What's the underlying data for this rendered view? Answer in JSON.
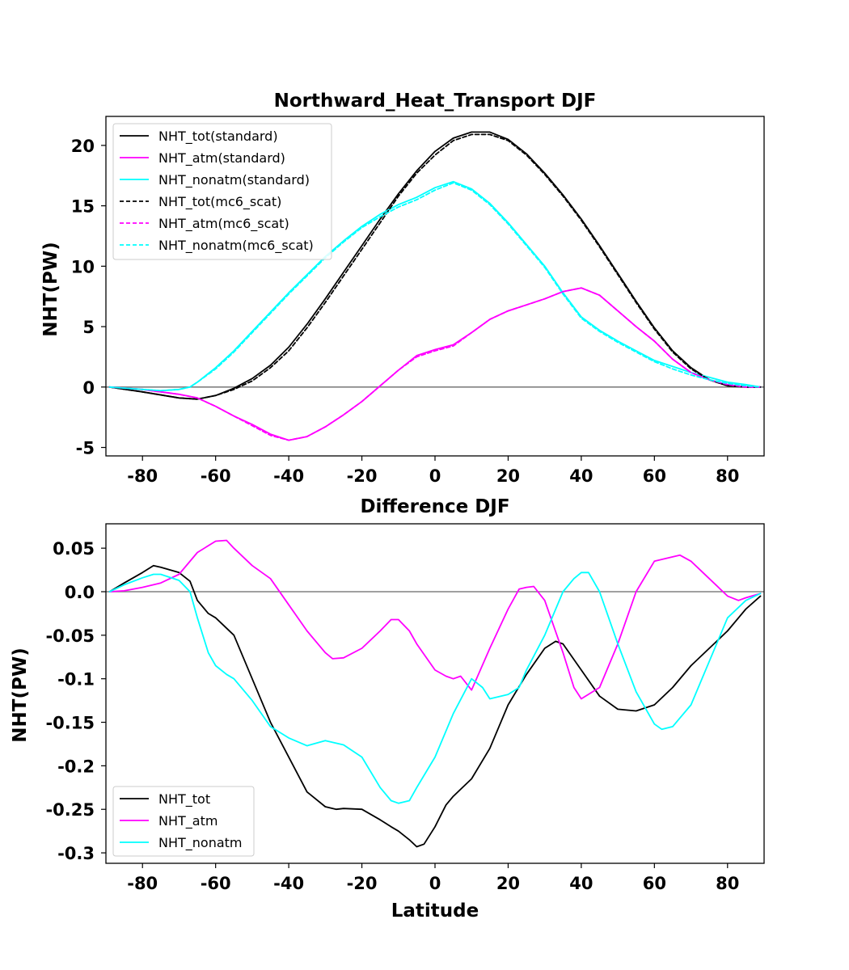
{
  "chart_data": [
    {
      "type": "line",
      "title": "Northward_Heat_Transport DJF",
      "xlabel": "",
      "ylabel": "NHT(PW)",
      "xlim": [
        -90,
        90
      ],
      "ylim": [
        -5.7,
        22.4
      ],
      "xticks": [
        "-80",
        "-60",
        "-40",
        "-20",
        "0",
        "20",
        "40",
        "60",
        "80"
      ],
      "yticks": [
        "-5",
        "0",
        "5",
        "10",
        "15",
        "20"
      ],
      "zero_line": true,
      "legend_position": "upper-left",
      "series": [
        {
          "name": "NHT_tot(standard)",
          "color": "#000000",
          "dash": "solid",
          "x": [
            -89,
            -80,
            -70,
            -65,
            -60,
            -55,
            -50,
            -45,
            -40,
            -35,
            -30,
            -25,
            -20,
            -15,
            -10,
            -5,
            0,
            5,
            10,
            15,
            20,
            25,
            30,
            35,
            40,
            45,
            50,
            55,
            60,
            65,
            70,
            75,
            80,
            85,
            89
          ],
          "y": [
            0,
            -0.4,
            -0.9,
            -1.0,
            -0.7,
            -0.1,
            0.7,
            1.8,
            3.3,
            5.2,
            7.3,
            9.5,
            11.7,
            13.9,
            16.0,
            17.9,
            19.5,
            20.6,
            21.1,
            21.1,
            20.5,
            19.3,
            17.7,
            15.9,
            13.9,
            11.7,
            9.4,
            7.1,
            4.9,
            3.0,
            1.6,
            0.6,
            0.1,
            0,
            0
          ]
        },
        {
          "name": "NHT_atm(standard)",
          "color": "#ff00ff",
          "dash": "solid",
          "x": [
            -89,
            -80,
            -75,
            -70,
            -65,
            -60,
            -55,
            -50,
            -45,
            -40,
            -35,
            -30,
            -25,
            -20,
            -15,
            -10,
            -5,
            0,
            5,
            10,
            15,
            20,
            25,
            30,
            35,
            40,
            45,
            50,
            55,
            60,
            65,
            70,
            75,
            80,
            85,
            89
          ],
          "y": [
            0,
            -0.2,
            -0.4,
            -0.6,
            -0.9,
            -1.6,
            -2.4,
            -3.1,
            -3.9,
            -4.4,
            -4.1,
            -3.3,
            -2.3,
            -1.2,
            0.1,
            1.4,
            2.6,
            3.1,
            3.5,
            4.5,
            5.6,
            6.3,
            6.8,
            7.3,
            7.9,
            8.2,
            7.6,
            6.3,
            5.0,
            3.8,
            2.3,
            1.2,
            0.6,
            0.2,
            0,
            0
          ]
        },
        {
          "name": "NHT_nonatm(standard)",
          "color": "#00ffff",
          "dash": "solid",
          "x": [
            -89,
            -80,
            -75,
            -70,
            -67,
            -65,
            -60,
            -55,
            -50,
            -45,
            -40,
            -35,
            -30,
            -25,
            -20,
            -15,
            -10,
            -5,
            0,
            5,
            10,
            15,
            20,
            25,
            30,
            35,
            40,
            45,
            50,
            55,
            60,
            65,
            70,
            75,
            80,
            85,
            89
          ],
          "y": [
            0,
            -0.2,
            -0.3,
            -0.2,
            0,
            0.4,
            1.6,
            3.0,
            4.6,
            6.2,
            7.8,
            9.3,
            10.8,
            12.1,
            13.3,
            14.3,
            15.1,
            15.7,
            16.5,
            17.0,
            16.4,
            15.2,
            13.6,
            11.8,
            10.0,
            7.8,
            5.8,
            4.7,
            3.8,
            3.0,
            2.2,
            1.7,
            1.2,
            0.8,
            0.4,
            0.2,
            0
          ]
        },
        {
          "name": "NHT_tot(mc6_scat)",
          "color": "#000000",
          "dash": "dashed",
          "x": [
            -89,
            -80,
            -70,
            -65,
            -60,
            -55,
            -50,
            -45,
            -40,
            -35,
            -30,
            -25,
            -20,
            -15,
            -10,
            -5,
            0,
            5,
            10,
            15,
            20,
            25,
            30,
            35,
            40,
            45,
            50,
            55,
            60,
            65,
            70,
            75,
            80,
            85,
            89
          ],
          "y": [
            0,
            -0.4,
            -0.9,
            -1.0,
            -0.7,
            -0.2,
            0.5,
            1.6,
            3.0,
            4.9,
            7.0,
            9.2,
            11.4,
            13.6,
            15.8,
            17.7,
            19.2,
            20.4,
            20.9,
            20.9,
            20.4,
            19.2,
            17.6,
            15.8,
            13.8,
            11.6,
            9.3,
            7.0,
            4.8,
            2.9,
            1.5,
            0.6,
            0.1,
            0,
            0
          ]
        },
        {
          "name": "NHT_atm(mc6_scat)",
          "color": "#ff00ff",
          "dash": "dashed",
          "x": [
            -89,
            -80,
            -75,
            -70,
            -65,
            -60,
            -55,
            -50,
            -45,
            -40,
            -35,
            -30,
            -25,
            -20,
            -15,
            -10,
            -5,
            0,
            5,
            10,
            15,
            20,
            25,
            30,
            35,
            40,
            45,
            50,
            55,
            60,
            65,
            70,
            75,
            80,
            85,
            89
          ],
          "y": [
            0,
            -0.2,
            -0.4,
            -0.6,
            -0.9,
            -1.6,
            -2.4,
            -3.2,
            -4.0,
            -4.4,
            -4.1,
            -3.3,
            -2.3,
            -1.2,
            0.1,
            1.4,
            2.5,
            3.0,
            3.4,
            4.5,
            5.6,
            6.3,
            6.8,
            7.3,
            7.9,
            8.2,
            7.6,
            6.3,
            5.0,
            3.8,
            2.3,
            1.2,
            0.6,
            0.2,
            0,
            0
          ]
        },
        {
          "name": "NHT_nonatm(mc6_scat)",
          "color": "#00ffff",
          "dash": "dashed",
          "x": [
            -89,
            -80,
            -75,
            -70,
            -67,
            -65,
            -60,
            -55,
            -50,
            -45,
            -40,
            -35,
            -30,
            -25,
            -20,
            -15,
            -10,
            -5,
            0,
            5,
            10,
            15,
            20,
            25,
            30,
            35,
            40,
            45,
            50,
            55,
            60,
            65,
            70,
            75,
            80,
            85,
            89
          ],
          "y": [
            0,
            -0.2,
            -0.3,
            -0.2,
            0,
            0.4,
            1.5,
            2.9,
            4.5,
            6.1,
            7.7,
            9.2,
            10.7,
            12.0,
            13.2,
            14.1,
            14.9,
            15.5,
            16.3,
            16.9,
            16.3,
            15.1,
            13.5,
            11.7,
            9.9,
            7.7,
            5.7,
            4.6,
            3.7,
            2.9,
            2.1,
            1.5,
            1.0,
            0.6,
            0.3,
            0.1,
            0
          ]
        }
      ]
    },
    {
      "type": "line",
      "title": "Difference DJF",
      "xlabel": "Latitude",
      "ylabel": "NHT(PW)",
      "xlim": [
        -90,
        90
      ],
      "ylim": [
        -0.312,
        0.078
      ],
      "xticks": [
        "-80",
        "-60",
        "-40",
        "-20",
        "0",
        "20",
        "40",
        "60",
        "80"
      ],
      "yticks": [
        "-0.3",
        "-0.25",
        "-0.2",
        "-0.15",
        "-0.1",
        "-0.05",
        "0.0",
        "0.05"
      ],
      "zero_line": true,
      "legend_position": "lower-left",
      "series": [
        {
          "name": "NHT_tot",
          "color": "#000000",
          "dash": "solid",
          "x": [
            -89,
            -85,
            -80,
            -77,
            -75,
            -70,
            -67,
            -65,
            -62,
            -60,
            -55,
            -50,
            -45,
            -40,
            -35,
            -30,
            -27,
            -25,
            -20,
            -15,
            -12,
            -10,
            -7,
            -5,
            -3,
            0,
            3,
            5,
            10,
            15,
            20,
            25,
            30,
            33,
            35,
            40,
            45,
            50,
            55,
            60,
            65,
            70,
            75,
            80,
            85,
            89
          ],
          "y": [
            0,
            0.01,
            0.022,
            0.03,
            0.028,
            0.022,
            0.012,
            -0.01,
            -0.025,
            -0.03,
            -0.05,
            -0.1,
            -0.15,
            -0.19,
            -0.23,
            -0.247,
            -0.25,
            -0.249,
            -0.25,
            -0.262,
            -0.27,
            -0.275,
            -0.285,
            -0.293,
            -0.29,
            -0.27,
            -0.245,
            -0.235,
            -0.215,
            -0.18,
            -0.13,
            -0.095,
            -0.065,
            -0.057,
            -0.06,
            -0.09,
            -0.12,
            -0.135,
            -0.137,
            -0.13,
            -0.11,
            -0.085,
            -0.065,
            -0.045,
            -0.02,
            -0.005
          ]
        },
        {
          "name": "NHT_atm",
          "color": "#ff00ff",
          "dash": "solid",
          "x": [
            -89,
            -85,
            -80,
            -75,
            -70,
            -65,
            -60,
            -57,
            -55,
            -50,
            -45,
            -40,
            -35,
            -30,
            -28,
            -25,
            -20,
            -15,
            -12,
            -10,
            -7,
            -5,
            0,
            3,
            5,
            7,
            10,
            15,
            20,
            23,
            25,
            27,
            30,
            35,
            38,
            40,
            45,
            50,
            55,
            60,
            65,
            67,
            70,
            75,
            80,
            83,
            85,
            89
          ],
          "y": [
            0,
            0.001,
            0.005,
            0.01,
            0.02,
            0.045,
            0.058,
            0.059,
            0.05,
            0.03,
            0.015,
            -0.015,
            -0.045,
            -0.07,
            -0.077,
            -0.076,
            -0.065,
            -0.045,
            -0.032,
            -0.032,
            -0.045,
            -0.06,
            -0.09,
            -0.097,
            -0.1,
            -0.097,
            -0.113,
            -0.065,
            -0.02,
            0.003,
            0.005,
            0.006,
            -0.01,
            -0.07,
            -0.11,
            -0.123,
            -0.11,
            -0.06,
            0.0,
            0.035,
            0.04,
            0.042,
            0.035,
            0.015,
            -0.005,
            -0.01,
            -0.007,
            -0.002
          ]
        },
        {
          "name": "NHT_nonatm",
          "color": "#00ffff",
          "dash": "solid",
          "x": [
            -89,
            -85,
            -80,
            -77,
            -75,
            -70,
            -67,
            -65,
            -62,
            -60,
            -57,
            -55,
            -50,
            -45,
            -40,
            -35,
            -30,
            -25,
            -20,
            -15,
            -12,
            -10,
            -7,
            -5,
            0,
            3,
            5,
            10,
            13,
            15,
            20,
            23,
            25,
            30,
            35,
            38,
            40,
            42,
            45,
            50,
            55,
            60,
            62,
            65,
            70,
            75,
            80,
            85,
            89
          ],
          "y": [
            0,
            0.008,
            0.016,
            0.02,
            0.02,
            0.013,
            0.0,
            -0.03,
            -0.07,
            -0.085,
            -0.095,
            -0.1,
            -0.125,
            -0.155,
            -0.168,
            -0.177,
            -0.171,
            -0.176,
            -0.19,
            -0.225,
            -0.24,
            -0.243,
            -0.24,
            -0.225,
            -0.19,
            -0.16,
            -0.14,
            -0.1,
            -0.11,
            -0.123,
            -0.118,
            -0.11,
            -0.09,
            -0.05,
            0.0,
            0.015,
            0.022,
            0.022,
            0.0,
            -0.06,
            -0.115,
            -0.152,
            -0.158,
            -0.155,
            -0.13,
            -0.08,
            -0.03,
            -0.01,
            -0.002
          ]
        }
      ]
    }
  ]
}
